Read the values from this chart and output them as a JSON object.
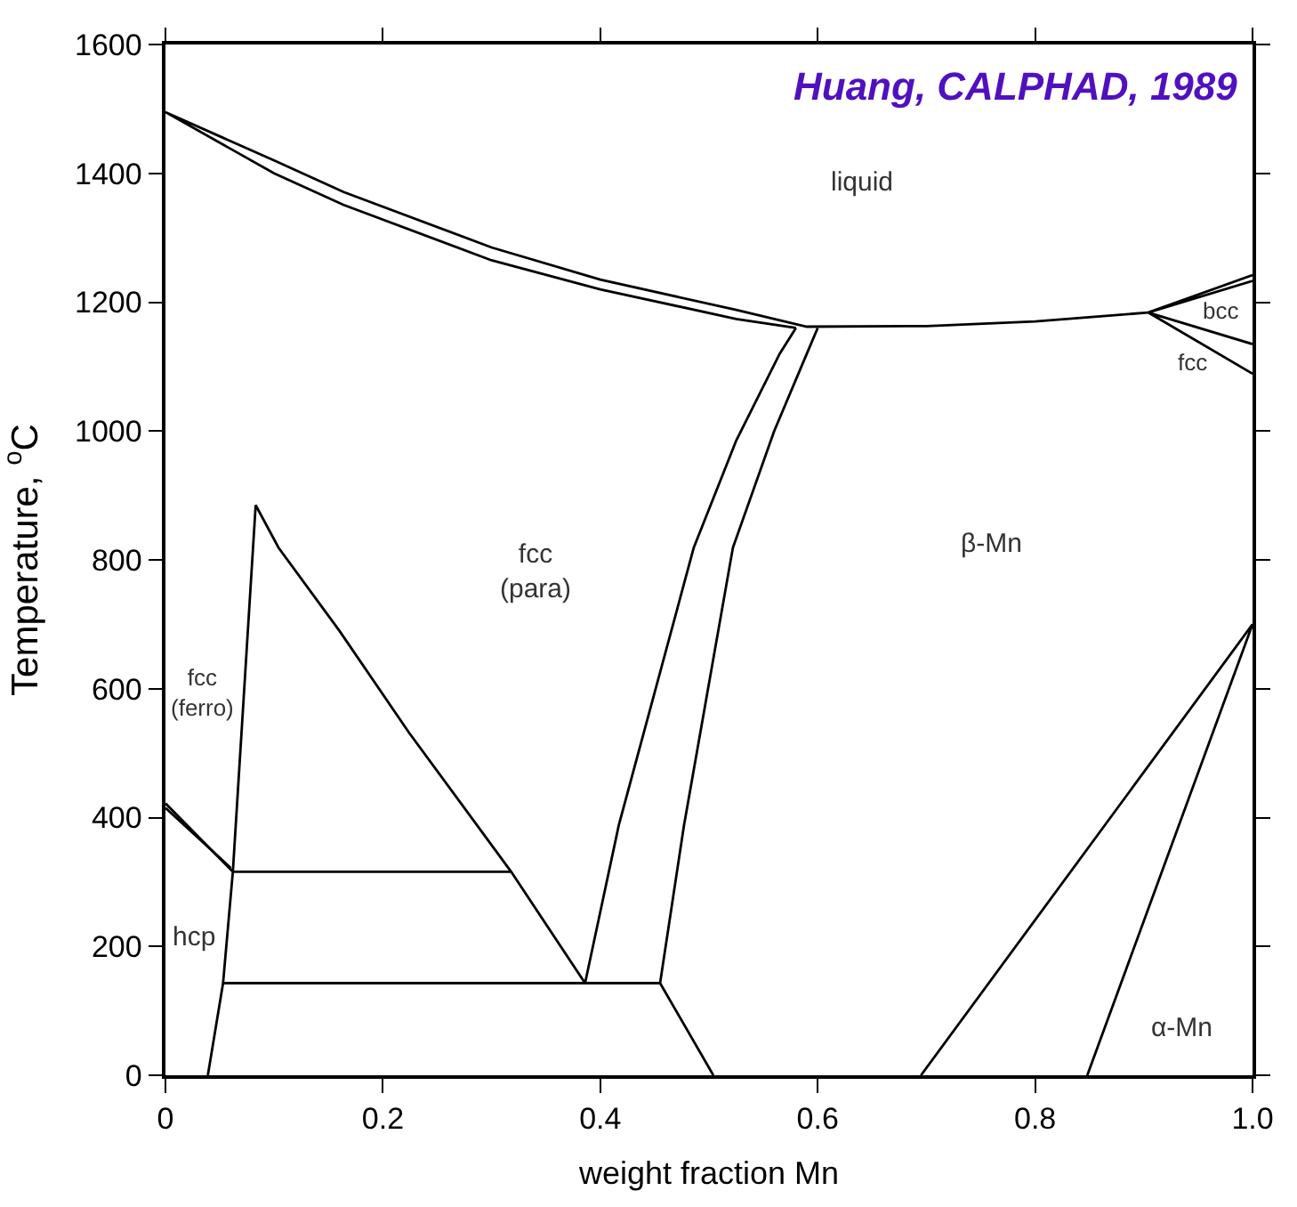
{
  "chart_data": {
    "type": "line",
    "xlabel": "weight fraction Mn",
    "ylabel": "Temperature, $^{o}$C",
    "xlim": [
      0,
      1
    ],
    "ylim": [
      0,
      1600
    ],
    "xticks": [
      0,
      0.2,
      0.4,
      0.6,
      0.8,
      {
        "value": 1,
        "label": "1.0"
      }
    ],
    "yticks": [
      0,
      200,
      400,
      600,
      800,
      1000,
      1200,
      1400,
      1600
    ],
    "marker": "none",
    "line_style": "solid",
    "series": [
      {
        "color": "#000000",
        "x": [
          0.58,
          0.525,
          0.4,
          0.3,
          0.164,
          0.1,
          0,
          0.1,
          0.164,
          0.3,
          0.4,
          0.525,
          0.59,
          0.7,
          0.8,
          0.904
        ],
        "values": [
          1160,
          1174,
          1220,
          1265,
          1351,
          1400,
          1495,
          1420,
          1371,
          1285,
          1235,
          1188,
          1162,
          1163,
          1170,
          1184
        ]
      },
      {
        "color": "#000000",
        "x": [
          1.0,
          0.904,
          1.0
        ],
        "values": [
          1242,
          1184,
          1233
        ]
      },
      {
        "color": "#000000",
        "x": [
          1.0,
          0.904,
          1.0
        ],
        "values": [
          1135,
          1184,
          1089
        ]
      },
      {
        "color": "#000000",
        "x": [
          0.386,
          0.417,
          0.486,
          0.525,
          0.565,
          0.58
        ],
        "values": [
          143,
          388,
          819,
          985,
          1120,
          1160
        ]
      },
      {
        "color": "#000000",
        "x": [
          0.455,
          0.477,
          0.522,
          0.56,
          0.59,
          0.6
        ],
        "values": [
          143,
          388,
          819,
          1000,
          1120,
          1160
        ]
      },
      {
        "color": "#000000",
        "x": [
          0.455,
          0.504
        ],
        "values": [
          143,
          0
        ]
      },
      {
        "color": "#000000",
        "x": [
          0.695,
          1.0,
          0.848
        ],
        "values": [
          0,
          700,
          0
        ]
      },
      {
        "color": "#000000",
        "x": [
          0.039,
          0.053,
          0.062,
          0.083,
          0.104,
          0.16,
          0.224,
          0.318,
          0.386
        ],
        "values": [
          0,
          143,
          316,
          885,
          819,
          690,
          532,
          316,
          143
        ]
      },
      {
        "color": "#000000",
        "x": [
          0.062,
          0.318
        ],
        "values": [
          316,
          316
        ]
      },
      {
        "color": "#000000",
        "x": [
          0.053,
          0.455
        ],
        "values": [
          143,
          143
        ]
      },
      {
        "color": "#000000",
        "x": [
          0,
          0.062
        ],
        "values": [
          422,
          316
        ]
      },
      {
        "color": "#000000",
        "x": [
          0,
          0.06
        ],
        "values": [
          415,
          322
        ]
      }
    ],
    "annotations": [
      "Huang, CALPHAD, 1989",
      "liquid",
      "bcc",
      "fcc",
      "fcc\n(para)",
      "β-Mn",
      "fcc\n(ferro)",
      "hcp",
      "α-Mn"
    ]
  }
}
